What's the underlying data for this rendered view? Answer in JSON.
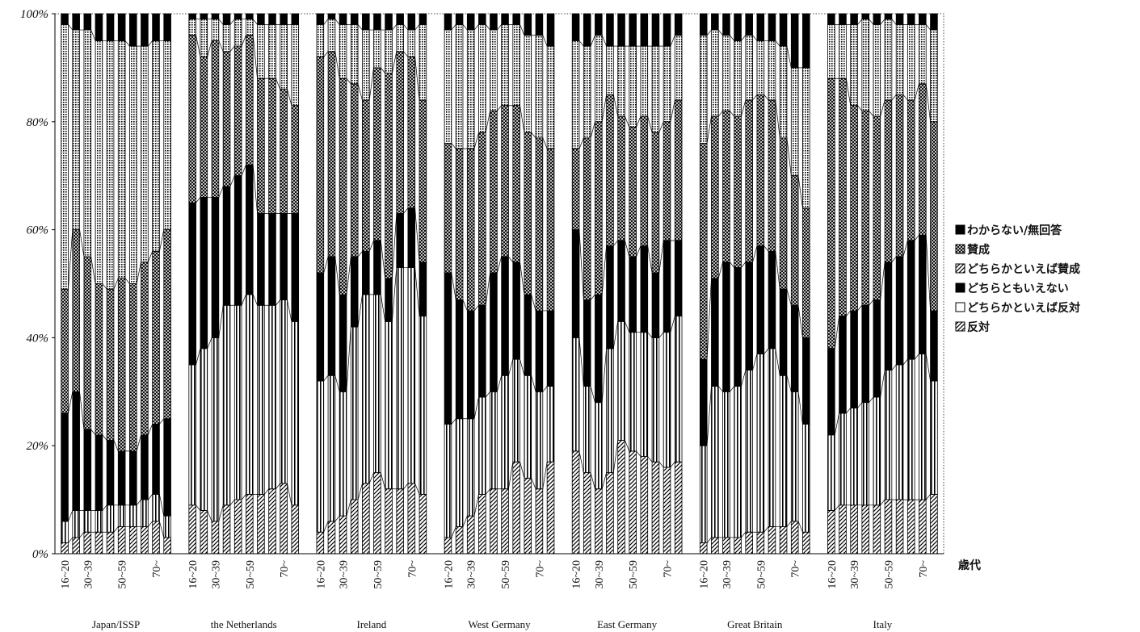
{
  "chart_data": {
    "type": "bar",
    "stacked": true,
    "y_unit": "%",
    "ylim": [
      0,
      100
    ],
    "yticks": [
      "0%",
      "20%",
      "40%",
      "60%",
      "80%",
      "100%"
    ],
    "x_unit_label": "歳代",
    "age_tick_labels": [
      "16~20",
      "30~39",
      "50~59",
      "70~"
    ],
    "ages_per_group": 10,
    "grid": false,
    "legend_position": "right",
    "groups": [
      "Japan/ISSP",
      "the Netherlands",
      "Ireland",
      "West Germany",
      "East Germany",
      "Great Britain",
      "Italy"
    ],
    "legend": [
      "わからない/無回答",
      "賛成",
      "どちらかといえば賛成",
      "どちらともいえない",
      "どちらかといえば反対",
      "反対"
    ],
    "series": [
      {
        "name": "反対",
        "group_values": [
          [
            2,
            3,
            4,
            4,
            4,
            5,
            5,
            5,
            6,
            3
          ],
          [
            9,
            8,
            6,
            9,
            10,
            11,
            11,
            12,
            13,
            9
          ],
          [
            4,
            6,
            7,
            10,
            13,
            15,
            12,
            12,
            13,
            11
          ],
          [
            3,
            5,
            7,
            11,
            12,
            12,
            17,
            14,
            12,
            17
          ],
          [
            19,
            15,
            12,
            15,
            21,
            19,
            18,
            17,
            16,
            17
          ],
          [
            2,
            3,
            3,
            3,
            4,
            4,
            5,
            5,
            6,
            4
          ],
          [
            8,
            9,
            9,
            9,
            9,
            10,
            10,
            10,
            10,
            11
          ]
        ]
      },
      {
        "name": "どちらかといえば反対",
        "group_values": [
          [
            4,
            5,
            4,
            4,
            5,
            4,
            4,
            5,
            5,
            4
          ],
          [
            26,
            30,
            34,
            37,
            36,
            37,
            35,
            34,
            34,
            34
          ],
          [
            28,
            27,
            23,
            32,
            35,
            33,
            31,
            41,
            40,
            33
          ],
          [
            21,
            20,
            18,
            18,
            18,
            21,
            19,
            19,
            18,
            14
          ],
          [
            21,
            16,
            16,
            23,
            22,
            22,
            23,
            23,
            25,
            27
          ],
          [
            18,
            28,
            27,
            28,
            30,
            33,
            33,
            28,
            24,
            20
          ],
          [
            14,
            17,
            18,
            19,
            20,
            24,
            25,
            26,
            27,
            21
          ]
        ]
      },
      {
        "name": "どちらともいえない",
        "group_values": [
          [
            20,
            22,
            15,
            14,
            12,
            10,
            10,
            12,
            13,
            18
          ],
          [
            30,
            28,
            26,
            22,
            24,
            24,
            17,
            17,
            16,
            20
          ],
          [
            20,
            22,
            18,
            13,
            8,
            10,
            8,
            10,
            11,
            10
          ],
          [
            28,
            22,
            20,
            17,
            22,
            22,
            18,
            15,
            15,
            14
          ],
          [
            20,
            16,
            20,
            19,
            15,
            14,
            16,
            12,
            17,
            14
          ],
          [
            16,
            20,
            24,
            22,
            20,
            20,
            18,
            16,
            16,
            16
          ],
          [
            16,
            18,
            18,
            18,
            18,
            20,
            20,
            22,
            22,
            13
          ]
        ]
      },
      {
        "name": "どちらかといえば賛成",
        "group_values": [
          [
            23,
            30,
            32,
            28,
            28,
            32,
            31,
            32,
            32,
            35
          ],
          [
            31,
            26,
            29,
            25,
            24,
            24,
            25,
            25,
            23,
            20
          ],
          [
            40,
            38,
            40,
            32,
            28,
            32,
            38,
            30,
            28,
            30
          ],
          [
            24,
            28,
            30,
            32,
            30,
            28,
            29,
            30,
            32,
            30
          ],
          [
            15,
            30,
            32,
            28,
            23,
            24,
            24,
            26,
            22,
            26
          ],
          [
            40,
            30,
            28,
            28,
            30,
            28,
            28,
            28,
            24,
            24
          ],
          [
            50,
            44,
            38,
            36,
            34,
            30,
            30,
            26,
            28,
            35
          ]
        ]
      },
      {
        "name": "賛成",
        "group_values": [
          [
            49,
            37,
            42,
            45,
            46,
            44,
            44,
            40,
            39,
            35
          ],
          [
            3,
            7,
            4,
            5,
            5,
            3,
            10,
            10,
            12,
            15
          ],
          [
            6,
            6,
            10,
            11,
            13,
            7,
            8,
            5,
            5,
            14
          ],
          [
            21,
            23,
            22,
            20,
            15,
            15,
            15,
            18,
            19,
            19
          ],
          [
            20,
            17,
            16,
            9,
            13,
            15,
            13,
            16,
            14,
            12
          ],
          [
            20,
            16,
            14,
            14,
            12,
            10,
            11,
            17,
            20,
            26
          ],
          [
            10,
            10,
            15,
            17,
            17,
            15,
            13,
            14,
            11,
            17
          ]
        ]
      },
      {
        "name": "わからない/無回答",
        "group_values": [
          [
            2,
            3,
            3,
            5,
            5,
            5,
            6,
            6,
            5,
            5
          ],
          [
            1,
            1,
            1,
            2,
            1,
            1,
            2,
            2,
            2,
            2
          ],
          [
            2,
            1,
            2,
            2,
            3,
            3,
            3,
            2,
            3,
            2
          ],
          [
            3,
            2,
            3,
            2,
            3,
            2,
            2,
            4,
            4,
            6
          ],
          [
            5,
            6,
            4,
            6,
            6,
            6,
            6,
            6,
            6,
            4
          ],
          [
            4,
            3,
            4,
            5,
            4,
            5,
            5,
            6,
            10,
            10
          ],
          [
            2,
            2,
            2,
            1,
            2,
            1,
            2,
            2,
            2,
            3
          ]
        ]
      }
    ]
  }
}
